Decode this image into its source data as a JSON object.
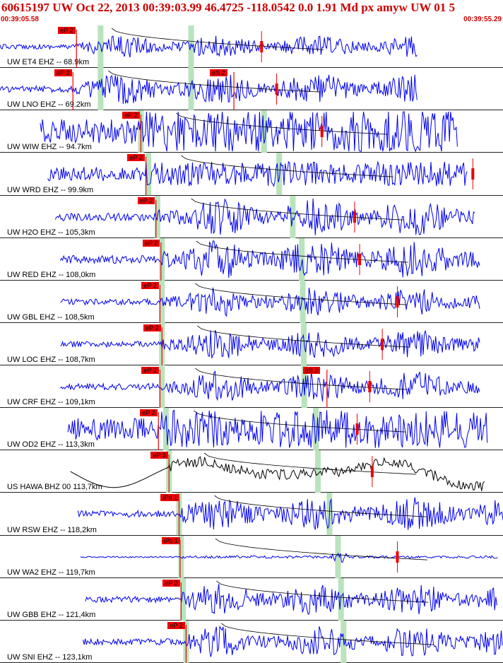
{
  "header": {
    "title": "60615197 UW Oct 22, 2013 00:39:03.99   46.4725 -118.0542  0.0 1.91 Md px amyw UW 01   5",
    "start_time": "00:39:05.58",
    "end_time": "00:39:55.29"
  },
  "colors": {
    "trace": "#0000ee",
    "pick": "#ee0000",
    "window": "#b9e3bd",
    "moveout": "#000000"
  },
  "traces": [
    {
      "label": "UW ET4 EHZ -- 68.9km",
      "ppick": "eP 2",
      "spick": "",
      "p": 0.152,
      "s": 0.0,
      "x0": 0.0,
      "x1": 0.83,
      "amp": 0.55,
      "mode": "quiet",
      "win1": 0.2,
      "win2": 0.38,
      "red": 0.52
    },
    {
      "label": "UW LNO EHZ -- 69.2km",
      "ppick": "eP 2",
      "spick": "eS 2",
      "p": 0.145,
      "s": 0.465,
      "x0": 0.0,
      "x1": 0.83,
      "amp": 0.75,
      "mode": "quiet",
      "win1": 0.2,
      "win2": 0.38,
      "red": 0.55
    },
    {
      "label": "UW WIW EHZ -- 94.7km",
      "ppick": "eP 2",
      "spick": "",
      "p": 0.28,
      "s": 0.0,
      "x0": 0.08,
      "x1": 0.91,
      "amp": 0.95,
      "mode": "noisy",
      "win1": 0.28,
      "win2": 0.525,
      "red": 0.64
    },
    {
      "label": "UW WRD EHZ -- 99.9km",
      "ppick": "eP 2",
      "spick": "",
      "p": 0.29,
      "s": 0.0,
      "x0": 0.095,
      "x1": 0.93,
      "amp": 0.55,
      "mode": "noisy",
      "win1": 0.295,
      "win2": 0.555,
      "red": 0.94
    },
    {
      "label": "UW H2O EHZ -- 105,3km",
      "ppick": "eP 2",
      "spick": "",
      "p": 0.31,
      "s": 0.0,
      "x0": 0.11,
      "x1": 0.945,
      "amp": 0.9,
      "mode": "quiet",
      "win1": 0.313,
      "win2": 0.582,
      "red": 0.705
    },
    {
      "label": "UW RED EHZ -- 108,0km",
      "ppick": "eP 2",
      "spick": "",
      "p": 0.32,
      "s": 0.0,
      "x0": 0.12,
      "x1": 0.955,
      "amp": 0.95,
      "mode": "quiet",
      "win1": 0.322,
      "win2": 0.6,
      "red": 0.715
    },
    {
      "label": "UW GBL EHZ -- 108,5km",
      "ppick": "eP 2",
      "spick": "",
      "p": 0.318,
      "s": 0.0,
      "x0": 0.12,
      "x1": 0.955,
      "amp": 0.7,
      "mode": "quiet",
      "win1": 0.322,
      "win2": 0.602,
      "red": 0.79
    },
    {
      "label": "UW LOC EHZ -- 108,7km",
      "ppick": "eP 2",
      "spick": "",
      "p": 0.322,
      "s": 0.0,
      "x0": 0.12,
      "x1": 0.955,
      "amp": 0.7,
      "mode": "quiet",
      "win1": 0.322,
      "win2": 0.604,
      "red": 0.76
    },
    {
      "label": "UW CRF EHZ -- 109,1km",
      "ppick": "eP 2",
      "spick": "eS 2",
      "p": 0.318,
      "s": 0.65,
      "x0": 0.12,
      "x1": 0.955,
      "amp": 0.75,
      "mode": "quiet",
      "win1": 0.322,
      "win2": 0.605,
      "red": 0.735
    },
    {
      "label": "UW OD2 EHZ -- 113,3km",
      "ppick": "eP 2",
      "spick": "",
      "p": 0.315,
      "s": 0.0,
      "x0": 0.135,
      "x1": 0.97,
      "amp": 0.85,
      "mode": "noisy",
      "win1": 0.33,
      "win2": 0.628,
      "red": 0.71
    },
    {
      "label": "US HAWA BHZ 00 113,7km",
      "ppick": "eP 3",
      "spick": "",
      "p": 0.336,
      "s": 0.0,
      "x0": 0.14,
      "x1": 0.965,
      "amp": 0.85,
      "mode": "long",
      "win1": 0.336,
      "win2": 0.632,
      "red": 0.74
    },
    {
      "label": "UW RSW EHZ -- 118,2km",
      "ppick": "iPd 1",
      "spick": "",
      "p": 0.356,
      "s": 0.0,
      "x0": 0.155,
      "x1": 1.0,
      "amp": 0.8,
      "mode": "quiet",
      "win1": 0.356,
      "win2": 0.655,
      "red": 0.0
    },
    {
      "label": "UW WA2 EHZ -- 119,7km",
      "ppick": "iPc 1",
      "spick": "",
      "p": 0.358,
      "s": 0.0,
      "x0": 0.16,
      "x1": 0.99,
      "amp": 0.25,
      "mode": "burst",
      "win1": 0.36,
      "win2": 0.672,
      "red": 0.79
    },
    {
      "label": "UW GBB EHZ -- 121,4km",
      "ppick": "eP 2",
      "spick": "",
      "p": 0.36,
      "s": 0.0,
      "x0": 0.17,
      "x1": 0.99,
      "amp": 0.75,
      "mode": "quiet",
      "win1": 0.364,
      "win2": 0.678,
      "red": 0.0
    },
    {
      "label": "UW SNI EHZ -- 123,1km",
      "ppick": "eP 2",
      "spick": "",
      "p": 0.37,
      "s": 0.0,
      "x0": 0.165,
      "x1": 1.0,
      "amp": 0.75,
      "mode": "quiet",
      "win1": 0.37,
      "win2": 0.683,
      "red": 0.0
    }
  ]
}
